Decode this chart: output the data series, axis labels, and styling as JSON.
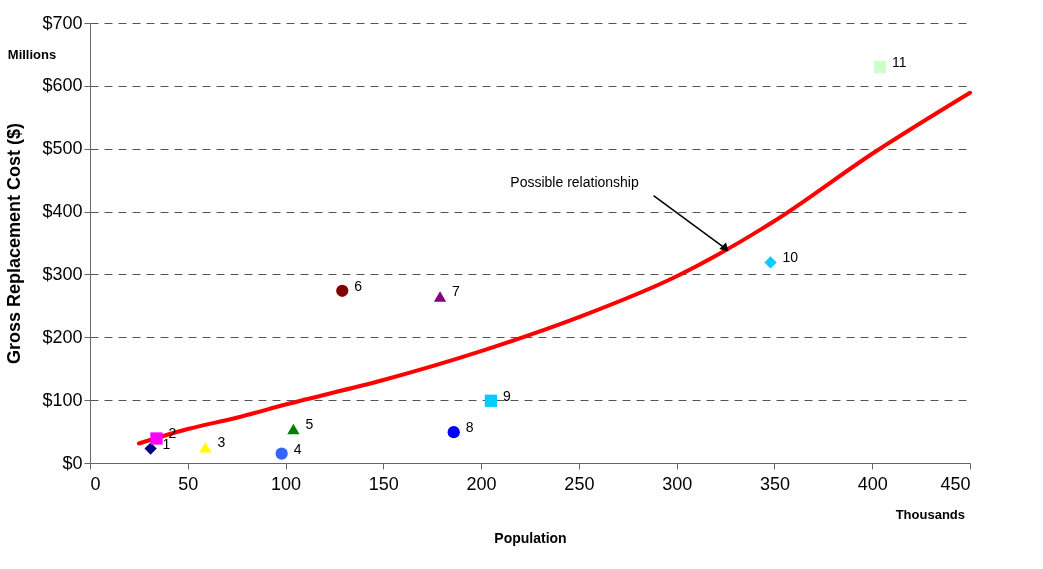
{
  "chart_data": {
    "type": "scatter",
    "xlabel": "Population",
    "ylabel": "Gross Replacement Cost ($)",
    "xlim": [
      0,
      450
    ],
    "xticks": [
      0,
      50,
      100,
      150,
      200,
      250,
      300,
      350,
      400,
      450
    ],
    "ylim": [
      0,
      700
    ],
    "yticks": [
      {
        "value": 0,
        "label": "$0"
      },
      {
        "value": 100,
        "label": "$100"
      },
      {
        "value": 200,
        "label": "$200"
      },
      {
        "value": 300,
        "label": "$300"
      },
      {
        "value": 400,
        "label": "$400"
      },
      {
        "value": 500,
        "label": "$500"
      },
      {
        "value": 600,
        "label": "$600"
      },
      {
        "value": 700,
        "label": "$700"
      }
    ],
    "grid": "y",
    "series": [
      {
        "name": "1",
        "color": "#000080",
        "marker": "diamond",
        "x": [
          31
        ],
        "values": [
          23
        ]
      },
      {
        "name": "2",
        "color": "#ff00ff",
        "marker": "square",
        "x": [
          34
        ],
        "values": [
          39
        ]
      },
      {
        "name": "3",
        "color": "#ffff00",
        "marker": "triangle",
        "x": [
          59
        ],
        "values": [
          25
        ]
      },
      {
        "name": "4",
        "color": "#3366ff",
        "marker": "circle",
        "x": [
          98
        ],
        "values": [
          15
        ]
      },
      {
        "name": "5",
        "color": "#008000",
        "marker": "triangle",
        "x": [
          104
        ],
        "values": [
          54
        ]
      },
      {
        "name": "6",
        "color": "#800000",
        "marker": "circle",
        "x": [
          129
        ],
        "values": [
          274
        ]
      },
      {
        "name": "7",
        "color": "#800080",
        "marker": "triangle",
        "x": [
          179
        ],
        "values": [
          265
        ]
      },
      {
        "name": "8",
        "color": "#0000ff",
        "marker": "circle",
        "x": [
          186
        ],
        "values": [
          49
        ]
      },
      {
        "name": "9",
        "color": "#00ccff",
        "marker": "square",
        "x": [
          205
        ],
        "values": [
          99
        ]
      },
      {
        "name": "10",
        "color": "#00ccff",
        "marker": "diamond",
        "x": [
          348
        ],
        "values": [
          319
        ]
      },
      {
        "name": "11",
        "color": "#ccffcc",
        "marker": "square",
        "x": [
          404
        ],
        "values": [
          630
        ]
      },
      {
        "type": "line",
        "color": "#ff0000",
        "marker": "none",
        "line_style": "solid",
        "x": [
          25,
          50,
          75,
          100,
          150,
          200,
          250,
          300,
          350,
          400,
          450
        ],
        "values": [
          31,
          54,
          72,
          93,
          132,
          178,
          232,
          297,
          385,
          492,
          589
        ]
      }
    ],
    "annotations": [
      {
        "text": "Possible relationship",
        "x": 325,
        "y": 341
      },
      "Millions",
      "Thousands"
    ]
  }
}
